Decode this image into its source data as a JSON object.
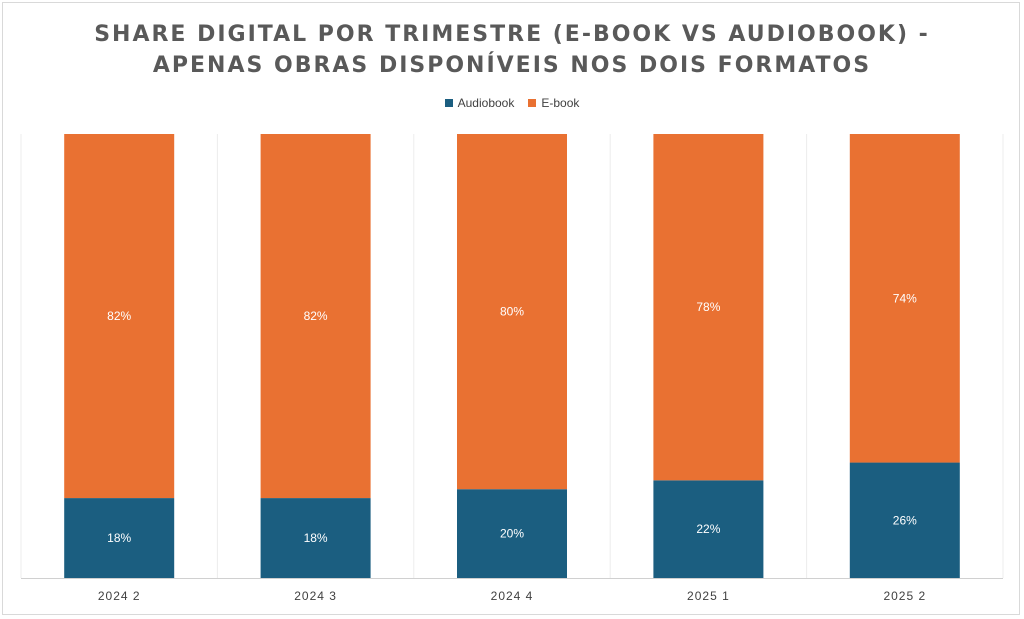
{
  "chart_data": {
    "type": "bar",
    "stacked": true,
    "percent": true,
    "title_line1": "SHARE DIGITAL POR TRIMESTRE (E-BOOK VS AUDIOBOOK) -",
    "title_line2": "APENAS OBRAS DISPONÍVEIS NOS DOIS FORMATOS",
    "categories": [
      "2024 2",
      "2024 3",
      "2024 4",
      "2025 1",
      "2025 2"
    ],
    "series": [
      {
        "name": "Audiobook",
        "color": "#1b5e80",
        "values": [
          18,
          18,
          20,
          22,
          26
        ],
        "labels": [
          "18%",
          "18%",
          "20%",
          "22%",
          "26%"
        ]
      },
      {
        "name": "E-book",
        "color": "#e97132",
        "values": [
          82,
          82,
          80,
          78,
          74
        ],
        "labels": [
          "82%",
          "82%",
          "80%",
          "78%",
          "74%"
        ]
      }
    ],
    "ylim": [
      0,
      100
    ],
    "legend_position": "top",
    "xlabel": "",
    "ylabel": ""
  }
}
